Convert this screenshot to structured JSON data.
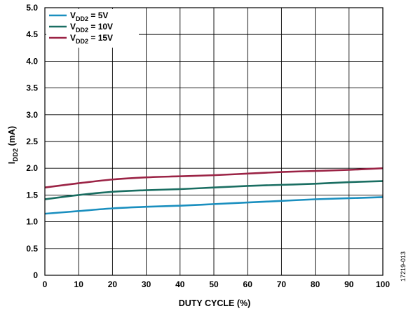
{
  "chart_data": {
    "type": "line",
    "xlabel": "DUTY CYCLE (%)",
    "ylabel": {
      "main": "I",
      "sub": "DD2",
      "unit": " (mA)"
    },
    "xlim": [
      0,
      100
    ],
    "ylim": [
      0,
      5.0
    ],
    "x_ticks": [
      "0",
      "10",
      "20",
      "30",
      "40",
      "50",
      "60",
      "70",
      "80",
      "90",
      "100"
    ],
    "y_ticks": [
      "0",
      "0.5",
      "1.0",
      "1.5",
      "2.0",
      "2.5",
      "3.0",
      "3.5",
      "4.0",
      "4.5",
      "5.0"
    ],
    "grid": true,
    "legend_position": "top-left",
    "series": [
      {
        "name": "VDD2 = 5V",
        "legend": {
          "main": "V",
          "sub": "DD2",
          "rest": " = 5V"
        },
        "color": "#1a8fbf",
        "x": [
          0,
          10,
          20,
          30,
          40,
          50,
          60,
          70,
          80,
          90,
          100
        ],
        "y": [
          1.15,
          1.2,
          1.25,
          1.28,
          1.3,
          1.33,
          1.36,
          1.39,
          1.42,
          1.44,
          1.46
        ]
      },
      {
        "name": "VDD2 = 10V",
        "legend": {
          "main": "V",
          "sub": "DD2",
          "rest": " = 10V"
        },
        "color": "#1a6e62",
        "x": [
          0,
          10,
          20,
          30,
          40,
          50,
          60,
          70,
          80,
          90,
          100
        ],
        "y": [
          1.42,
          1.5,
          1.56,
          1.59,
          1.61,
          1.64,
          1.67,
          1.69,
          1.71,
          1.74,
          1.76
        ]
      },
      {
        "name": "VDD2 = 15V",
        "legend": {
          "main": "V",
          "sub": "DD2",
          "rest": " = 15V"
        },
        "color": "#9b2345",
        "x": [
          0,
          10,
          20,
          30,
          40,
          50,
          60,
          70,
          80,
          90,
          100
        ],
        "y": [
          1.64,
          1.72,
          1.79,
          1.83,
          1.85,
          1.87,
          1.9,
          1.93,
          1.95,
          1.97,
          2.0
        ]
      }
    ]
  },
  "figure_id": "17219-013"
}
